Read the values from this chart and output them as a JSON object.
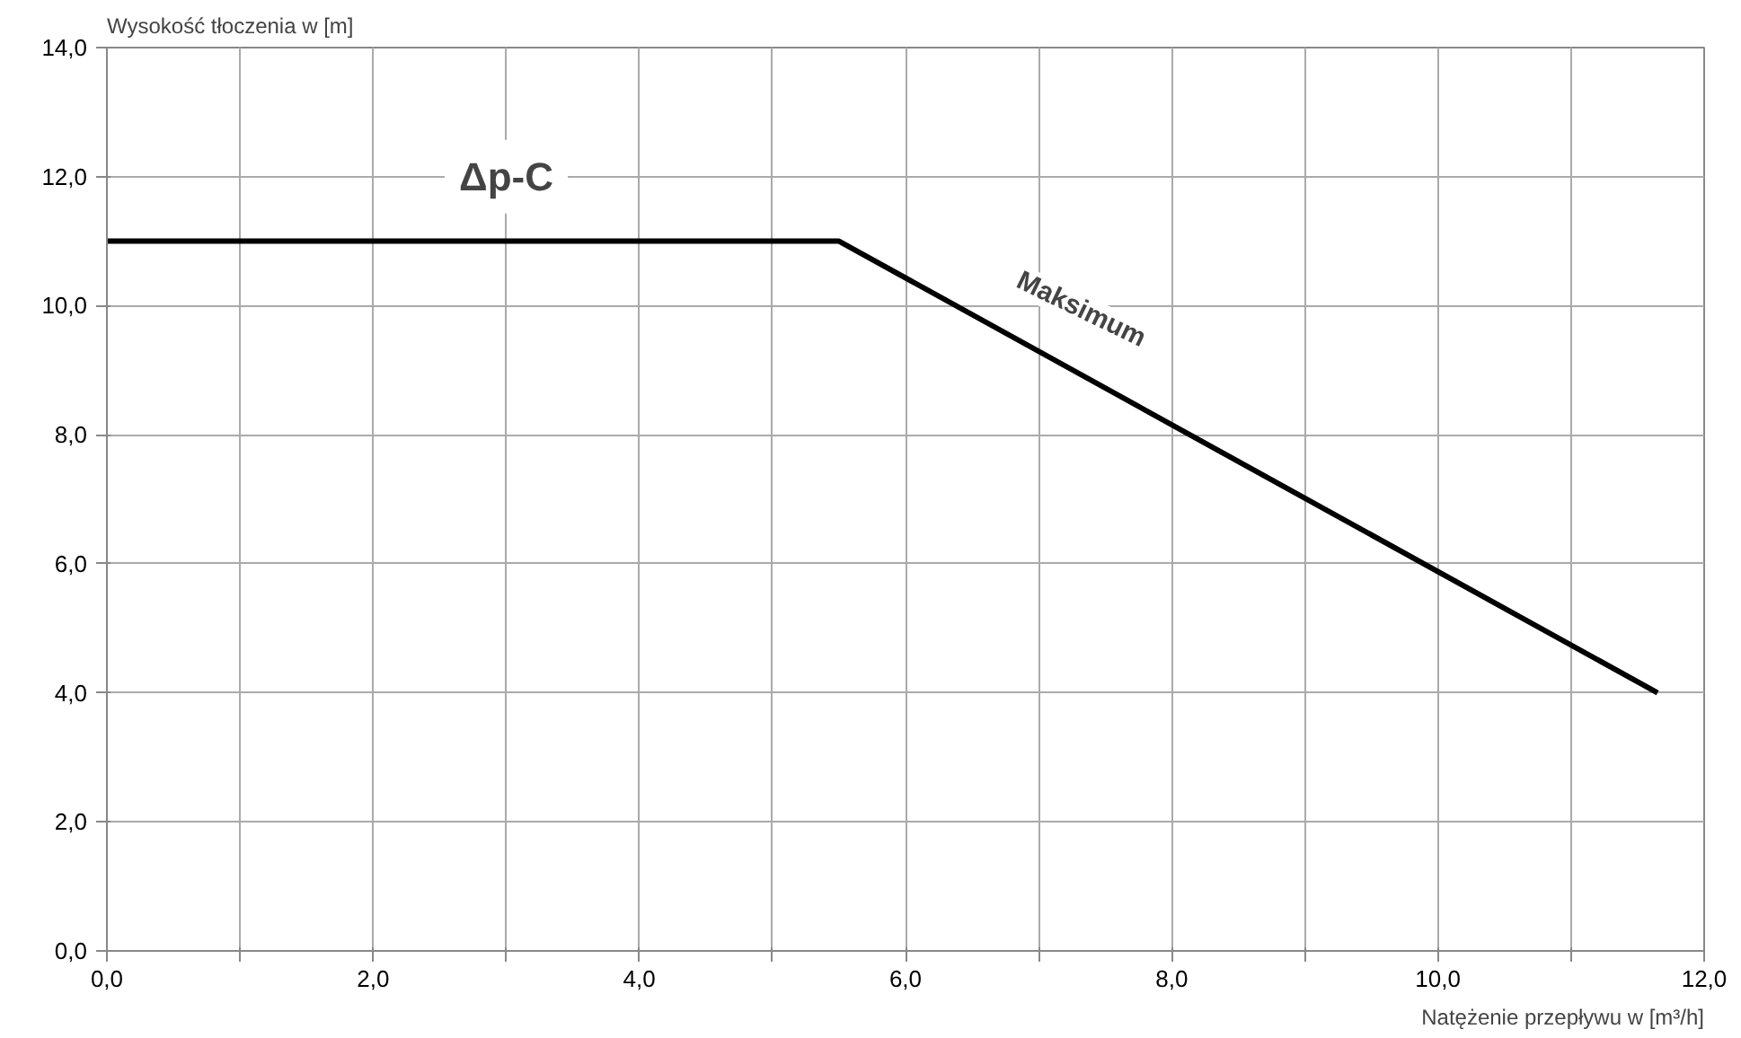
{
  "chart_data": {
    "type": "line",
    "xlabel": "Natężenie przepływu w [m³/h]",
    "ylabel": "Wysokość tłoczenia w [m]",
    "x": [
      0,
      5.5,
      11.65
    ],
    "series": [
      {
        "color": "#000000",
        "values": [
          11,
          11,
          4
        ]
      }
    ],
    "xlim": [
      0,
      12
    ],
    "ylim": [
      0,
      14
    ],
    "xticks": [
      {
        "value": 0,
        "label": "0,0"
      },
      {
        "value": 1,
        "label": null
      },
      {
        "value": 2,
        "label": "2,0"
      },
      {
        "value": 3,
        "label": null
      },
      {
        "value": 4,
        "label": "4,0"
      },
      {
        "value": 5,
        "label": null
      },
      {
        "value": 6,
        "label": "6,0"
      },
      {
        "value": 7,
        "label": null
      },
      {
        "value": 8,
        "label": "8,0"
      },
      {
        "value": 9,
        "label": null
      },
      {
        "value": 10,
        "label": "10,0"
      },
      {
        "value": 11,
        "label": null
      },
      {
        "value": 12,
        "label": "12,0"
      }
    ],
    "yticks": [
      {
        "value": 0,
        "label": "0,0"
      },
      {
        "value": 2,
        "label": "2,0"
      },
      {
        "value": 4,
        "label": "4,0"
      },
      {
        "value": 6,
        "label": "6,0"
      },
      {
        "value": 8,
        "label": "8,0"
      },
      {
        "value": 10,
        "label": "10,0"
      },
      {
        "value": 12,
        "label": "12,0"
      },
      {
        "value": 14,
        "label": "14,0"
      }
    ],
    "annotations": [
      "Δp-C",
      "Maksimum"
    ],
    "grid": true,
    "marker": "none",
    "line_style": "solid"
  }
}
